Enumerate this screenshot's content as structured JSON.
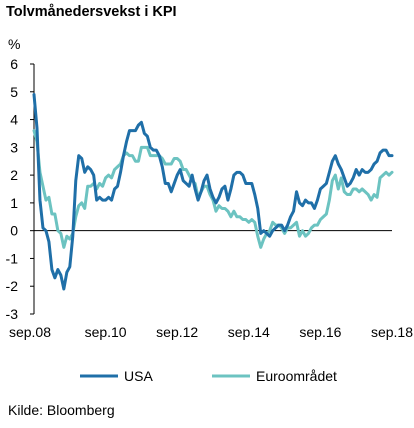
{
  "title": "Tolvmånedersvekst i KPI",
  "unit_label": "%",
  "source": "Kilde: Bloomberg",
  "chart_data": {
    "type": "line",
    "title": "Tolvmånedersvekst i KPI",
    "ylabel": "%",
    "ylim": [
      -3,
      6
    ],
    "yticks": [
      6,
      5,
      4,
      3,
      2,
      1,
      0,
      -1,
      -2,
      -3
    ],
    "xlim": [
      "2008-09",
      "2018-09"
    ],
    "xticks": [
      {
        "date": "2008-09",
        "label": "sep.08"
      },
      {
        "date": "2010-09",
        "label": "sep.10"
      },
      {
        "date": "2012-09",
        "label": "sep.12"
      },
      {
        "date": "2014-09",
        "label": "sep.14"
      },
      {
        "date": "2016-09",
        "label": "sep.16"
      },
      {
        "date": "2018-09",
        "label": "sep.18"
      }
    ],
    "grid": false,
    "legend_position": "bottom",
    "series": [
      {
        "name": "USA",
        "color": "#1F6FA8",
        "points": [
          [
            "2008-09",
            4.9
          ],
          [
            "2008-10",
            3.7
          ],
          [
            "2008-11",
            1.1
          ],
          [
            "2008-12",
            0.1
          ],
          [
            "2009-01",
            0.0
          ],
          [
            "2009-02",
            -0.4
          ],
          [
            "2009-03",
            -1.4
          ],
          [
            "2009-04",
            -1.7
          ],
          [
            "2009-05",
            -1.4
          ],
          [
            "2009-06",
            -1.6
          ],
          [
            "2009-07",
            -2.1
          ],
          [
            "2009-08",
            -1.5
          ],
          [
            "2009-09",
            -1.3
          ],
          [
            "2009-10",
            -0.2
          ],
          [
            "2009-11",
            1.8
          ],
          [
            "2009-12",
            2.7
          ],
          [
            "2010-01",
            2.6
          ],
          [
            "2010-02",
            2.1
          ],
          [
            "2010-03",
            2.3
          ],
          [
            "2010-04",
            2.2
          ],
          [
            "2010-05",
            2.0
          ],
          [
            "2010-06",
            1.1
          ],
          [
            "2010-07",
            1.2
          ],
          [
            "2010-08",
            1.1
          ],
          [
            "2010-09",
            1.1
          ],
          [
            "2010-10",
            1.2
          ],
          [
            "2010-11",
            1.1
          ],
          [
            "2010-12",
            1.5
          ],
          [
            "2011-01",
            1.6
          ],
          [
            "2011-02",
            2.1
          ],
          [
            "2011-03",
            2.7
          ],
          [
            "2011-04",
            3.2
          ],
          [
            "2011-05",
            3.6
          ],
          [
            "2011-06",
            3.6
          ],
          [
            "2011-07",
            3.6
          ],
          [
            "2011-08",
            3.8
          ],
          [
            "2011-09",
            3.9
          ],
          [
            "2011-10",
            3.5
          ],
          [
            "2011-11",
            3.4
          ],
          [
            "2011-12",
            3.0
          ],
          [
            "2012-01",
            2.9
          ],
          [
            "2012-02",
            2.9
          ],
          [
            "2012-03",
            2.7
          ],
          [
            "2012-04",
            2.3
          ],
          [
            "2012-05",
            1.7
          ],
          [
            "2012-06",
            1.7
          ],
          [
            "2012-07",
            1.4
          ],
          [
            "2012-08",
            1.7
          ],
          [
            "2012-09",
            2.0
          ],
          [
            "2012-10",
            2.2
          ],
          [
            "2012-11",
            1.8
          ],
          [
            "2012-12",
            1.7
          ],
          [
            "2013-01",
            1.6
          ],
          [
            "2013-02",
            2.0
          ],
          [
            "2013-03",
            1.5
          ],
          [
            "2013-04",
            1.1
          ],
          [
            "2013-05",
            1.4
          ],
          [
            "2013-06",
            1.8
          ],
          [
            "2013-07",
            2.0
          ],
          [
            "2013-08",
            1.5
          ],
          [
            "2013-09",
            1.2
          ],
          [
            "2013-10",
            1.0
          ],
          [
            "2013-11",
            1.2
          ],
          [
            "2013-12",
            1.5
          ],
          [
            "2014-01",
            1.6
          ],
          [
            "2014-02",
            1.1
          ],
          [
            "2014-03",
            1.5
          ],
          [
            "2014-04",
            2.0
          ],
          [
            "2014-05",
            2.1
          ],
          [
            "2014-06",
            2.1
          ],
          [
            "2014-07",
            2.0
          ],
          [
            "2014-08",
            1.7
          ],
          [
            "2014-09",
            1.7
          ],
          [
            "2014-10",
            1.7
          ],
          [
            "2014-11",
            1.3
          ],
          [
            "2014-12",
            0.8
          ],
          [
            "2015-01",
            -0.1
          ],
          [
            "2015-02",
            0.0
          ],
          [
            "2015-03",
            -0.1
          ],
          [
            "2015-04",
            -0.2
          ],
          [
            "2015-05",
            0.0
          ],
          [
            "2015-06",
            0.1
          ],
          [
            "2015-07",
            0.2
          ],
          [
            "2015-08",
            0.2
          ],
          [
            "2015-09",
            0.0
          ],
          [
            "2015-10",
            0.2
          ],
          [
            "2015-11",
            0.5
          ],
          [
            "2015-12",
            0.7
          ],
          [
            "2016-01",
            1.4
          ],
          [
            "2016-02",
            1.0
          ],
          [
            "2016-03",
            0.9
          ],
          [
            "2016-04",
            1.1
          ],
          [
            "2016-05",
            1.0
          ],
          [
            "2016-06",
            1.0
          ],
          [
            "2016-07",
            0.8
          ],
          [
            "2016-08",
            1.1
          ],
          [
            "2016-09",
            1.5
          ],
          [
            "2016-10",
            1.6
          ],
          [
            "2016-11",
            1.7
          ],
          [
            "2016-12",
            2.1
          ],
          [
            "2017-01",
            2.5
          ],
          [
            "2017-02",
            2.7
          ],
          [
            "2017-03",
            2.4
          ],
          [
            "2017-04",
            2.2
          ],
          [
            "2017-05",
            1.9
          ],
          [
            "2017-06",
            1.6
          ],
          [
            "2017-07",
            1.7
          ],
          [
            "2017-08",
            1.9
          ],
          [
            "2017-09",
            2.2
          ],
          [
            "2017-10",
            2.0
          ],
          [
            "2017-11",
            2.2
          ],
          [
            "2017-12",
            2.1
          ],
          [
            "2018-01",
            2.1
          ],
          [
            "2018-02",
            2.2
          ],
          [
            "2018-03",
            2.4
          ],
          [
            "2018-04",
            2.5
          ],
          [
            "2018-05",
            2.8
          ],
          [
            "2018-06",
            2.9
          ],
          [
            "2018-07",
            2.9
          ],
          [
            "2018-08",
            2.7
          ],
          [
            "2018-09",
            2.7
          ]
        ]
      },
      {
        "name": "Euroområdet",
        "color": "#6CC3C1",
        "points": [
          [
            "2008-09",
            3.6
          ],
          [
            "2008-10",
            3.2
          ],
          [
            "2008-11",
            2.1
          ],
          [
            "2008-12",
            1.6
          ],
          [
            "2009-01",
            1.1
          ],
          [
            "2009-02",
            1.2
          ],
          [
            "2009-03",
            0.6
          ],
          [
            "2009-04",
            0.6
          ],
          [
            "2009-05",
            0.0
          ],
          [
            "2009-06",
            -0.1
          ],
          [
            "2009-07",
            -0.6
          ],
          [
            "2009-08",
            -0.2
          ],
          [
            "2009-09",
            -0.3
          ],
          [
            "2009-10",
            -0.1
          ],
          [
            "2009-11",
            0.5
          ],
          [
            "2009-12",
            0.9
          ],
          [
            "2010-01",
            1.0
          ],
          [
            "2010-02",
            0.8
          ],
          [
            "2010-03",
            1.6
          ],
          [
            "2010-04",
            1.6
          ],
          [
            "2010-05",
            1.7
          ],
          [
            "2010-06",
            1.5
          ],
          [
            "2010-07",
            1.7
          ],
          [
            "2010-08",
            1.6
          ],
          [
            "2010-09",
            1.9
          ],
          [
            "2010-10",
            2.0
          ],
          [
            "2010-11",
            1.9
          ],
          [
            "2010-12",
            2.2
          ],
          [
            "2011-01",
            2.3
          ],
          [
            "2011-02",
            2.4
          ],
          [
            "2011-03",
            2.7
          ],
          [
            "2011-04",
            2.8
          ],
          [
            "2011-05",
            2.7
          ],
          [
            "2011-06",
            2.7
          ],
          [
            "2011-07",
            2.5
          ],
          [
            "2011-08",
            2.5
          ],
          [
            "2011-09",
            3.0
          ],
          [
            "2011-10",
            3.0
          ],
          [
            "2011-11",
            3.0
          ],
          [
            "2011-12",
            2.7
          ],
          [
            "2012-01",
            2.7
          ],
          [
            "2012-02",
            2.7
          ],
          [
            "2012-03",
            2.7
          ],
          [
            "2012-04",
            2.6
          ],
          [
            "2012-05",
            2.4
          ],
          [
            "2012-06",
            2.4
          ],
          [
            "2012-07",
            2.4
          ],
          [
            "2012-08",
            2.6
          ],
          [
            "2012-09",
            2.6
          ],
          [
            "2012-10",
            2.5
          ],
          [
            "2012-11",
            2.2
          ],
          [
            "2012-12",
            2.2
          ],
          [
            "2013-01",
            2.0
          ],
          [
            "2013-02",
            1.8
          ],
          [
            "2013-03",
            1.7
          ],
          [
            "2013-04",
            1.2
          ],
          [
            "2013-05",
            1.4
          ],
          [
            "2013-06",
            1.6
          ],
          [
            "2013-07",
            1.6
          ],
          [
            "2013-08",
            1.3
          ],
          [
            "2013-09",
            1.1
          ],
          [
            "2013-10",
            0.7
          ],
          [
            "2013-11",
            0.9
          ],
          [
            "2013-12",
            0.8
          ],
          [
            "2014-01",
            0.8
          ],
          [
            "2014-02",
            0.7
          ],
          [
            "2014-03",
            0.5
          ],
          [
            "2014-04",
            0.7
          ],
          [
            "2014-05",
            0.5
          ],
          [
            "2014-06",
            0.5
          ],
          [
            "2014-07",
            0.4
          ],
          [
            "2014-08",
            0.4
          ],
          [
            "2014-09",
            0.3
          ],
          [
            "2014-10",
            0.4
          ],
          [
            "2014-11",
            0.3
          ],
          [
            "2014-12",
            -0.2
          ],
          [
            "2015-01",
            -0.6
          ],
          [
            "2015-02",
            -0.3
          ],
          [
            "2015-03",
            -0.1
          ],
          [
            "2015-04",
            0.0
          ],
          [
            "2015-05",
            0.3
          ],
          [
            "2015-06",
            0.2
          ],
          [
            "2015-07",
            0.2
          ],
          [
            "2015-08",
            0.1
          ],
          [
            "2015-09",
            -0.1
          ],
          [
            "2015-10",
            0.1
          ],
          [
            "2015-11",
            0.1
          ],
          [
            "2015-12",
            0.2
          ],
          [
            "2016-01",
            0.3
          ],
          [
            "2016-02",
            -0.2
          ],
          [
            "2016-03",
            0.0
          ],
          [
            "2016-04",
            -0.2
          ],
          [
            "2016-05",
            -0.1
          ],
          [
            "2016-06",
            0.1
          ],
          [
            "2016-07",
            0.2
          ],
          [
            "2016-08",
            0.2
          ],
          [
            "2016-09",
            0.4
          ],
          [
            "2016-10",
            0.5
          ],
          [
            "2016-11",
            0.6
          ],
          [
            "2016-12",
            1.1
          ],
          [
            "2017-01",
            1.8
          ],
          [
            "2017-02",
            2.0
          ],
          [
            "2017-03",
            1.5
          ],
          [
            "2017-04",
            1.9
          ],
          [
            "2017-05",
            1.4
          ],
          [
            "2017-06",
            1.3
          ],
          [
            "2017-07",
            1.3
          ],
          [
            "2017-08",
            1.5
          ],
          [
            "2017-09",
            1.5
          ],
          [
            "2017-10",
            1.4
          ],
          [
            "2017-11",
            1.5
          ],
          [
            "2017-12",
            1.4
          ],
          [
            "2018-01",
            1.3
          ],
          [
            "2018-02",
            1.1
          ],
          [
            "2018-03",
            1.3
          ],
          [
            "2018-04",
            1.2
          ],
          [
            "2018-05",
            1.9
          ],
          [
            "2018-06",
            2.0
          ],
          [
            "2018-07",
            2.1
          ],
          [
            "2018-08",
            2.0
          ],
          [
            "2018-09",
            2.1
          ]
        ]
      }
    ]
  }
}
